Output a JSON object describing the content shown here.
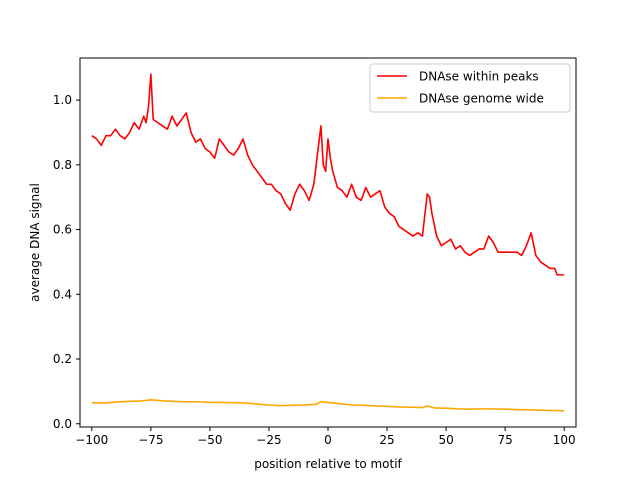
{
  "chart_data": {
    "type": "line",
    "title": "",
    "xlabel": "position relative to motif",
    "ylabel": "average DNA signal",
    "xlim": [
      -105,
      105
    ],
    "ylim": [
      -0.01,
      1.13
    ],
    "xticks": [
      -100,
      -75,
      -50,
      -25,
      0,
      25,
      50,
      75,
      100
    ],
    "yticks": [
      0.0,
      0.2,
      0.4,
      0.6,
      0.8,
      1.0
    ],
    "xtick_labels": [
      "−100",
      "−75",
      "−50",
      "−25",
      "0",
      "25",
      "50",
      "75",
      "100"
    ],
    "ytick_labels": [
      "0.0",
      "0.2",
      "0.4",
      "0.6",
      "0.8",
      "1.0"
    ],
    "grid": false,
    "legend_position": "top-right",
    "series": [
      {
        "name": "DNAse within peaks",
        "color": "#ff0000",
        "points": [
          [
            -100,
            0.89
          ],
          [
            -98,
            0.88
          ],
          [
            -96,
            0.86
          ],
          [
            -94,
            0.89
          ],
          [
            -92,
            0.89
          ],
          [
            -90,
            0.91
          ],
          [
            -88,
            0.89
          ],
          [
            -86,
            0.88
          ],
          [
            -84,
            0.9
          ],
          [
            -82,
            0.93
          ],
          [
            -80,
            0.91
          ],
          [
            -78,
            0.95
          ],
          [
            -77,
            0.93
          ],
          [
            -76,
            0.98
          ],
          [
            -75,
            1.08
          ],
          [
            -74,
            0.94
          ],
          [
            -72,
            0.93
          ],
          [
            -70,
            0.92
          ],
          [
            -68,
            0.91
          ],
          [
            -66,
            0.95
          ],
          [
            -64,
            0.92
          ],
          [
            -62,
            0.94
          ],
          [
            -60,
            0.96
          ],
          [
            -58,
            0.9
          ],
          [
            -56,
            0.87
          ],
          [
            -54,
            0.88
          ],
          [
            -52,
            0.85
          ],
          [
            -50,
            0.84
          ],
          [
            -48,
            0.82
          ],
          [
            -46,
            0.88
          ],
          [
            -44,
            0.86
          ],
          [
            -42,
            0.84
          ],
          [
            -40,
            0.83
          ],
          [
            -38,
            0.85
          ],
          [
            -36,
            0.88
          ],
          [
            -34,
            0.83
          ],
          [
            -32,
            0.8
          ],
          [
            -30,
            0.78
          ],
          [
            -28,
            0.76
          ],
          [
            -26,
            0.74
          ],
          [
            -24,
            0.74
          ],
          [
            -22,
            0.72
          ],
          [
            -20,
            0.71
          ],
          [
            -18,
            0.68
          ],
          [
            -16,
            0.66
          ],
          [
            -14,
            0.71
          ],
          [
            -12,
            0.74
          ],
          [
            -10,
            0.72
          ],
          [
            -8,
            0.69
          ],
          [
            -6,
            0.74
          ],
          [
            -4,
            0.86
          ],
          [
            -3,
            0.92
          ],
          [
            -2,
            0.8
          ],
          [
            -1,
            0.78
          ],
          [
            0,
            0.88
          ],
          [
            1,
            0.82
          ],
          [
            2,
            0.78
          ],
          [
            4,
            0.73
          ],
          [
            6,
            0.72
          ],
          [
            8,
            0.7
          ],
          [
            10,
            0.74
          ],
          [
            12,
            0.7
          ],
          [
            14,
            0.69
          ],
          [
            16,
            0.73
          ],
          [
            18,
            0.7
          ],
          [
            20,
            0.71
          ],
          [
            22,
            0.72
          ],
          [
            24,
            0.67
          ],
          [
            26,
            0.65
          ],
          [
            28,
            0.64
          ],
          [
            30,
            0.61
          ],
          [
            32,
            0.6
          ],
          [
            34,
            0.59
          ],
          [
            36,
            0.58
          ],
          [
            38,
            0.59
          ],
          [
            40,
            0.58
          ],
          [
            42,
            0.71
          ],
          [
            43,
            0.7
          ],
          [
            44,
            0.65
          ],
          [
            46,
            0.58
          ],
          [
            48,
            0.55
          ],
          [
            50,
            0.56
          ],
          [
            52,
            0.57
          ],
          [
            54,
            0.54
          ],
          [
            56,
            0.55
          ],
          [
            58,
            0.53
          ],
          [
            60,
            0.52
          ],
          [
            62,
            0.53
          ],
          [
            64,
            0.54
          ],
          [
            66,
            0.54
          ],
          [
            68,
            0.58
          ],
          [
            70,
            0.56
          ],
          [
            72,
            0.53
          ],
          [
            74,
            0.53
          ],
          [
            76,
            0.53
          ],
          [
            78,
            0.53
          ],
          [
            80,
            0.53
          ],
          [
            82,
            0.52
          ],
          [
            84,
            0.55
          ],
          [
            86,
            0.59
          ],
          [
            88,
            0.52
          ],
          [
            90,
            0.5
          ],
          [
            92,
            0.49
          ],
          [
            94,
            0.48
          ],
          [
            96,
            0.48
          ],
          [
            97,
            0.46
          ],
          [
            98,
            0.46
          ],
          [
            100,
            0.46
          ]
        ]
      },
      {
        "name": "DNAse genome wide",
        "color": "#ffa500",
        "points": [
          [
            -100,
            0.065
          ],
          [
            -95,
            0.064
          ],
          [
            -90,
            0.067
          ],
          [
            -85,
            0.069
          ],
          [
            -80,
            0.07
          ],
          [
            -75,
            0.074
          ],
          [
            -70,
            0.071
          ],
          [
            -65,
            0.069
          ],
          [
            -60,
            0.068
          ],
          [
            -55,
            0.068
          ],
          [
            -50,
            0.066
          ],
          [
            -45,
            0.066
          ],
          [
            -40,
            0.065
          ],
          [
            -35,
            0.064
          ],
          [
            -30,
            0.061
          ],
          [
            -25,
            0.058
          ],
          [
            -20,
            0.056
          ],
          [
            -15,
            0.057
          ],
          [
            -10,
            0.058
          ],
          [
            -5,
            0.06
          ],
          [
            -3,
            0.068
          ],
          [
            0,
            0.066
          ],
          [
            5,
            0.062
          ],
          [
            10,
            0.058
          ],
          [
            15,
            0.057
          ],
          [
            20,
            0.055
          ],
          [
            25,
            0.054
          ],
          [
            30,
            0.052
          ],
          [
            35,
            0.051
          ],
          [
            40,
            0.05
          ],
          [
            42,
            0.055
          ],
          [
            45,
            0.049
          ],
          [
            50,
            0.048
          ],
          [
            55,
            0.046
          ],
          [
            60,
            0.045
          ],
          [
            65,
            0.046
          ],
          [
            70,
            0.046
          ],
          [
            75,
            0.045
          ],
          [
            80,
            0.044
          ],
          [
            85,
            0.043
          ],
          [
            90,
            0.042
          ],
          [
            95,
            0.041
          ],
          [
            100,
            0.04
          ]
        ]
      }
    ]
  }
}
